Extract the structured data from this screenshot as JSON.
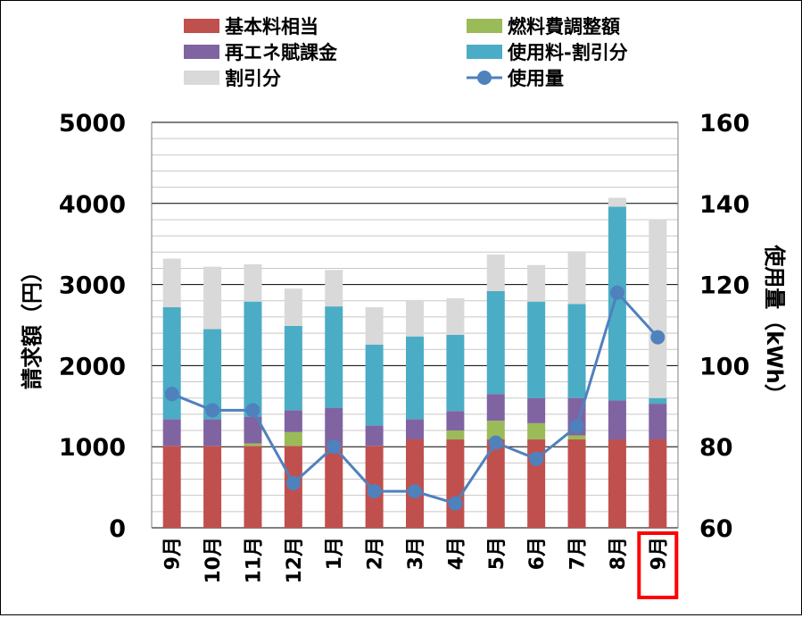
{
  "chart_data": {
    "type": "bar",
    "stacked": true,
    "categories": [
      "9月",
      "10月",
      "11月",
      "12月",
      "1月",
      "2月",
      "3月",
      "4月",
      "5月",
      "6月",
      "7月",
      "8月",
      "9月"
    ],
    "highlighted_category_index": 12,
    "highlight_color": "#ff0000",
    "grid": true,
    "legend_position": "top",
    "y_left": {
      "label": "請求額（円）",
      "lim": [
        0,
        5000
      ],
      "ticks": [
        "0",
        "1000",
        "2000",
        "3000",
        "4000",
        "5000"
      ]
    },
    "y_right": {
      "label": "使用量（kWh）",
      "lim": [
        60,
        160
      ],
      "ticks": [
        "60",
        "80",
        "100",
        "120",
        "140",
        "160"
      ]
    },
    "series": [
      {
        "name": "基本料相当",
        "kind": "bar",
        "color": "#c0504d",
        "values": [
          1010,
          1010,
          1010,
          1010,
          1010,
          1010,
          1090,
          1090,
          1090,
          1090,
          1090,
          1090,
          1090
        ]
      },
      {
        "name": "燃料費調整額",
        "kind": "bar",
        "color": "#9bbb59",
        "values": [
          0,
          0,
          30,
          170,
          0,
          0,
          0,
          110,
          230,
          200,
          50,
          0,
          0
        ]
      },
      {
        "name": "再エネ賦課金",
        "kind": "bar",
        "color": "#8064a2",
        "values": [
          330,
          330,
          330,
          270,
          470,
          250,
          250,
          240,
          330,
          310,
          460,
          480,
          440
        ]
      },
      {
        "name": "使用料-割引分",
        "kind": "bar",
        "color": "#4bacc6",
        "values": [
          1380,
          1110,
          1420,
          1040,
          1250,
          1000,
          1020,
          940,
          1270,
          1190,
          1160,
          2390,
          70
        ]
      },
      {
        "name": "割引分",
        "kind": "bar",
        "color": "#d9d9d9",
        "values": [
          600,
          770,
          460,
          460,
          450,
          460,
          450,
          450,
          450,
          450,
          650,
          110,
          2200
        ]
      },
      {
        "name": "使用量",
        "kind": "line",
        "axis": "right",
        "color": "#4f81bd",
        "values": [
          93,
          89,
          89,
          71,
          80,
          69,
          69,
          66,
          81,
          77,
          85,
          118,
          107
        ]
      }
    ]
  }
}
